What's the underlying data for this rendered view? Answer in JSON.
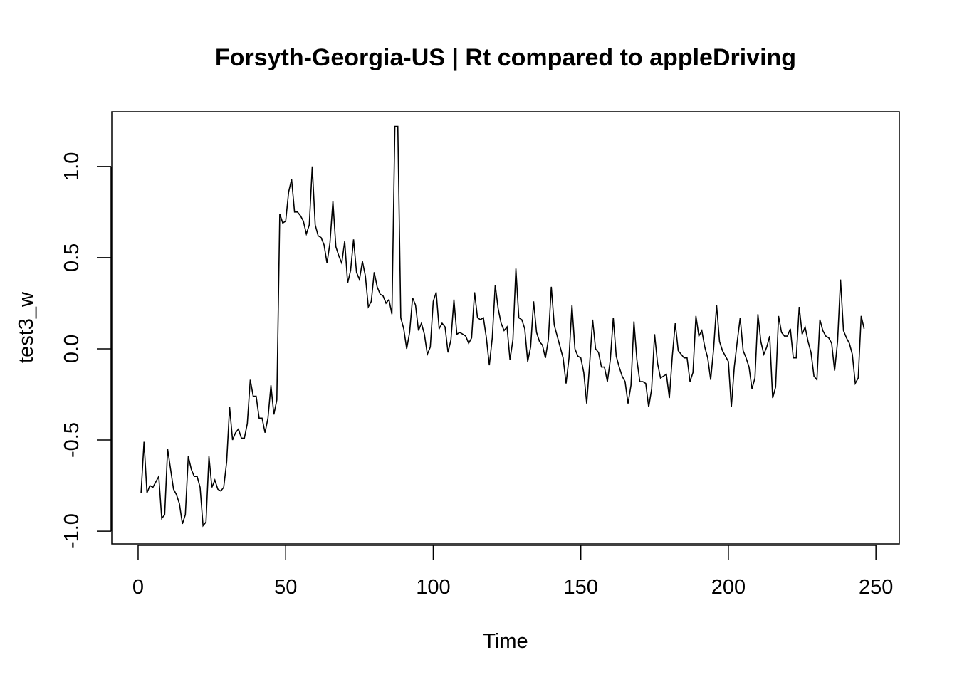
{
  "colors": {
    "background": "#ffffff",
    "foreground": "#000000",
    "series_line": "#000000"
  },
  "chart_data": {
    "type": "line",
    "title": "Forsyth-Georgia-US | Rt compared to appleDriving",
    "xlabel": "Time",
    "ylabel": "test3_w",
    "xlim": [
      -8.92,
      257.92
    ],
    "ylim": [
      -1.07,
      1.3
    ],
    "x_ticks": [
      0,
      50,
      100,
      150,
      200,
      250
    ],
    "x_tick_labels": [
      "0",
      "50",
      "100",
      "150",
      "200",
      "250"
    ],
    "y_ticks": [
      -1.0,
      -0.5,
      0.0,
      0.5,
      1.0
    ],
    "y_tick_labels": [
      "-1.0",
      "-0.5",
      "0.0",
      "0.5",
      "1.0"
    ],
    "grid": false,
    "legend": "none",
    "series": [
      {
        "x_start": 1,
        "x_step": 1,
        "values": [
          -0.79,
          -0.51,
          -0.79,
          -0.75,
          -0.76,
          -0.73,
          -0.7,
          -0.93,
          -0.91,
          -0.55,
          -0.66,
          -0.77,
          -0.8,
          -0.85,
          -0.96,
          -0.91,
          -0.59,
          -0.66,
          -0.7,
          -0.7,
          -0.76,
          -0.97,
          -0.95,
          -0.59,
          -0.76,
          -0.72,
          -0.77,
          -0.78,
          -0.76,
          -0.62,
          -0.32,
          -0.5,
          -0.46,
          -0.44,
          -0.49,
          -0.49,
          -0.41,
          -0.17,
          -0.26,
          -0.26,
          -0.38,
          -0.38,
          -0.46,
          -0.38,
          -0.2,
          -0.36,
          -0.28,
          0.74,
          0.69,
          0.7,
          0.86,
          0.93,
          0.75,
          0.75,
          0.73,
          0.7,
          0.63,
          0.68,
          1.0,
          0.68,
          0.62,
          0.61,
          0.57,
          0.47,
          0.58,
          0.81,
          0.56,
          0.51,
          0.47,
          0.59,
          0.36,
          0.43,
          0.6,
          0.42,
          0.38,
          0.48,
          0.4,
          0.23,
          0.26,
          0.42,
          0.34,
          0.3,
          0.29,
          0.25,
          0.27,
          0.19,
          1.22,
          1.22,
          0.17,
          0.11,
          0.0,
          0.09,
          0.28,
          0.24,
          0.1,
          0.14,
          0.08,
          -0.03,
          0.01,
          0.26,
          0.31,
          0.11,
          0.14,
          0.12,
          -0.02,
          0.05,
          0.27,
          0.08,
          0.09,
          0.08,
          0.07,
          0.03,
          0.06,
          0.31,
          0.17,
          0.16,
          0.17,
          0.06,
          -0.09,
          0.06,
          0.35,
          0.22,
          0.14,
          0.1,
          0.12,
          -0.06,
          0.05,
          0.44,
          0.17,
          0.16,
          0.11,
          -0.07,
          0.01,
          0.26,
          0.09,
          0.04,
          0.02,
          -0.05,
          0.05,
          0.34,
          0.13,
          0.07,
          0.01,
          -0.05,
          -0.19,
          -0.05,
          0.24,
          0.0,
          -0.04,
          -0.05,
          -0.13,
          -0.3,
          -0.08,
          0.16,
          0.0,
          -0.02,
          -0.1,
          -0.1,
          -0.18,
          -0.06,
          0.17,
          -0.04,
          -0.1,
          -0.15,
          -0.18,
          -0.3,
          -0.2,
          0.15,
          -0.06,
          -0.18,
          -0.18,
          -0.19,
          -0.32,
          -0.22,
          0.08,
          -0.08,
          -0.16,
          -0.15,
          -0.14,
          -0.27,
          -0.04,
          0.14,
          -0.01,
          -0.03,
          -0.05,
          -0.05,
          -0.18,
          -0.13,
          0.18,
          0.07,
          0.1,
          0.01,
          -0.05,
          -0.17,
          0.0,
          0.24,
          0.04,
          -0.01,
          -0.04,
          -0.07,
          -0.32,
          -0.1,
          0.04,
          0.17,
          -0.01,
          -0.05,
          -0.1,
          -0.22,
          -0.16,
          0.19,
          0.04,
          -0.03,
          0.01,
          0.07,
          -0.27,
          -0.21,
          0.18,
          0.09,
          0.07,
          0.07,
          0.11,
          -0.05,
          -0.05,
          0.23,
          0.08,
          0.12,
          0.04,
          -0.02,
          -0.15,
          -0.17,
          0.16,
          0.1,
          0.07,
          0.06,
          0.03,
          -0.12,
          0.04,
          0.38,
          0.1,
          0.06,
          0.03,
          -0.03,
          -0.19,
          -0.16,
          0.18,
          0.11
        ]
      }
    ]
  }
}
